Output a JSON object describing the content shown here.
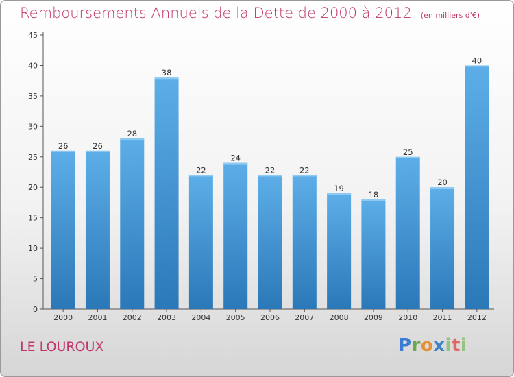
{
  "header": {
    "title": "Remboursements Annuels de la Dette de 2000 à 2012",
    "subtitle": "(en milliers d'€)"
  },
  "footer": {
    "commune": "LE LOUROUX",
    "brand": "Proxiti"
  },
  "colors": {
    "title": "#c0356b",
    "bar_top": "#5daee8",
    "bar_bottom": "#2b78b8"
  },
  "chart_data": {
    "type": "bar",
    "title": "Remboursements Annuels de la Dette de 2000 à 2012",
    "subtitle": "(en milliers d'€)",
    "categories": [
      "2000",
      "2001",
      "2002",
      "2003",
      "2004",
      "2005",
      "2006",
      "2007",
      "2008",
      "2009",
      "2010",
      "2011",
      "2012"
    ],
    "values": [
      26,
      26,
      28,
      38,
      22,
      24,
      22,
      22,
      19,
      18,
      25,
      20,
      40
    ],
    "ylim": [
      0,
      45
    ],
    "yticks": [
      0,
      5,
      10,
      15,
      20,
      25,
      30,
      35,
      40,
      45
    ],
    "grid": false,
    "data_labels": true
  }
}
